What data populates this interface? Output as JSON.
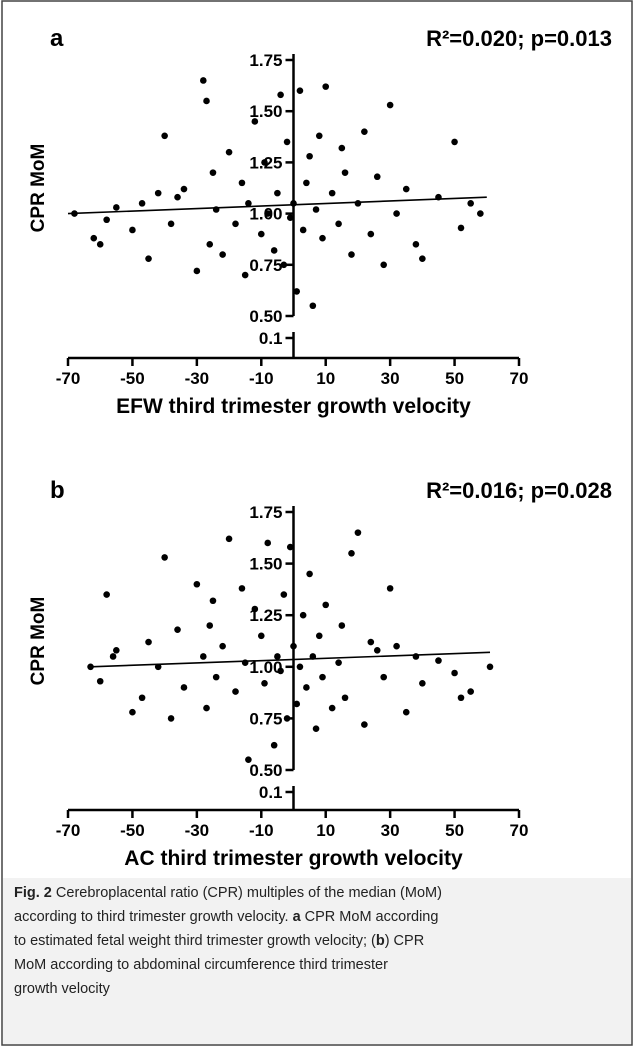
{
  "chart_data": [
    {
      "type": "scatter",
      "panel_label": "a",
      "annotation": "R²=0.020; p=0.013",
      "x_label": "EFW third trimester growth velocity",
      "y_label": "CPR MoM",
      "color": "#000000",
      "y_axis_break": true,
      "xlim": [
        -70,
        70
      ],
      "xticks": [
        -70,
        -50,
        -30,
        -10,
        10,
        30,
        50,
        70
      ],
      "ylim": [
        0.5,
        1.75
      ],
      "yticks": [
        {
          "value": 0.1,
          "label": "0.1"
        },
        {
          "value": 0.5,
          "label": "0.50"
        },
        0.75,
        {
          "value": 1.0,
          "label": "1.00"
        },
        1.25,
        {
          "value": 1.5,
          "label": "1.50"
        },
        1.75
      ],
      "x": [
        -68,
        -62,
        -60,
        -58,
        -55,
        -50,
        -47,
        -45,
        -42,
        -40,
        -38,
        -36,
        -34,
        -30,
        -28,
        -27,
        -26,
        -25,
        -24,
        -22,
        -20,
        -18,
        -16,
        -15,
        -14,
        -12,
        -10,
        -9,
        -8,
        -6,
        -5,
        -4,
        -3,
        -2,
        -1,
        0,
        1,
        2,
        3,
        4,
        5,
        6,
        7,
        8,
        9,
        10,
        12,
        14,
        15,
        16,
        18,
        20,
        22,
        24,
        26,
        28,
        30,
        32,
        35,
        38,
        40,
        45,
        50,
        52,
        55,
        58
      ],
      "values": [
        1.0,
        0.88,
        0.85,
        0.97,
        1.03,
        0.92,
        1.05,
        0.78,
        1.1,
        1.38,
        0.95,
        1.08,
        1.12,
        0.72,
        1.65,
        1.55,
        0.85,
        1.2,
        1.02,
        0.8,
        1.3,
        0.95,
        1.15,
        0.7,
        1.05,
        1.45,
        0.9,
        1.25,
        1.0,
        0.82,
        1.1,
        1.58,
        0.75,
        1.35,
        0.98,
        1.05,
        0.62,
        1.6,
        0.92,
        1.15,
        1.28,
        0.55,
        1.02,
        1.38,
        0.88,
        1.62,
        1.1,
        0.95,
        1.32,
        1.2,
        0.8,
        1.05,
        1.4,
        0.9,
        1.18,
        0.75,
        1.53,
        1.0,
        1.12,
        0.85,
        0.78,
        1.08,
        1.35,
        0.93,
        1.05,
        1.0
      ],
      "regression": {
        "x": [
          -70,
          60
        ],
        "y": [
          1.0,
          1.08
        ]
      }
    },
    {
      "type": "scatter",
      "panel_label": "b",
      "annotation": "R²=0.016; p=0.028",
      "x_label": "AC third trimester growth velocity",
      "y_label": "CPR MoM",
      "color": "#000000",
      "y_axis_break": true,
      "xlim": [
        -70,
        70
      ],
      "xticks": [
        -70,
        -50,
        -30,
        -10,
        10,
        30,
        50,
        70
      ],
      "ylim": [
        0.5,
        1.75
      ],
      "yticks": [
        {
          "value": 0.1,
          "label": "0.1"
        },
        {
          "value": 0.5,
          "label": "0.50"
        },
        0.75,
        {
          "value": 1.0,
          "label": "1.00"
        },
        1.25,
        {
          "value": 1.5,
          "label": "1.50"
        },
        1.75
      ],
      "x": [
        -63,
        -56,
        -60,
        -58,
        -55,
        -50,
        -47,
        -45,
        -42,
        -40,
        -38,
        -36,
        -34,
        -30,
        -28,
        -27,
        -26,
        -25,
        -24,
        -22,
        -20,
        -18,
        -16,
        -15,
        -14,
        -12,
        -10,
        -9,
        -8,
        -6,
        -5,
        -4,
        -3,
        -2,
        -1,
        0,
        1,
        2,
        3,
        4,
        5,
        6,
        7,
        8,
        9,
        10,
        12,
        14,
        15,
        16,
        18,
        20,
        22,
        24,
        26,
        28,
        30,
        32,
        35,
        38,
        40,
        45,
        50,
        52,
        55,
        61
      ],
      "values": [
        1.0,
        1.05,
        0.93,
        1.35,
        1.08,
        0.78,
        0.85,
        1.12,
        1.0,
        1.53,
        0.75,
        1.18,
        0.9,
        1.4,
        1.05,
        0.8,
        1.2,
        1.32,
        0.95,
        1.1,
        1.62,
        0.88,
        1.38,
        1.02,
        0.55,
        1.28,
        1.15,
        0.92,
        1.6,
        0.62,
        1.05,
        0.98,
        1.35,
        0.75,
        1.58,
        1.1,
        0.82,
        1.0,
        1.25,
        0.9,
        1.45,
        1.05,
        0.7,
        1.15,
        0.95,
        1.3,
        0.8,
        1.02,
        1.2,
        0.85,
        1.55,
        1.65,
        0.72,
        1.12,
        1.08,
        0.95,
        1.38,
        1.1,
        0.78,
        1.05,
        0.92,
        1.03,
        0.97,
        0.85,
        0.88,
        1.0
      ],
      "regression": {
        "x": [
          -63,
          61
        ],
        "y": [
          1.0,
          1.07
        ]
      }
    }
  ],
  "caption": {
    "lines": [
      [
        {
          "text": "Fig. 2",
          "bold": true
        },
        {
          "text": " Cerebroplacental ratio (CPR) multiples of the median (MoM)",
          "bold": false
        }
      ],
      [
        {
          "text": "according to third trimester growth velocity. ",
          "bold": false
        },
        {
          "text": "a",
          "bold": true
        },
        {
          "text": " CPR MoM according",
          "bold": false
        }
      ],
      [
        {
          "text": "to estimated fetal weight third trimester growth velocity; (",
          "bold": false
        },
        {
          "text": "b",
          "bold": true
        },
        {
          "text": ") CPR",
          "bold": false
        }
      ],
      [
        {
          "text": "MoM according to abdominal circumference third trimester",
          "bold": false
        }
      ],
      [
        {
          "text": "growth velocity",
          "bold": false
        }
      ]
    ]
  }
}
